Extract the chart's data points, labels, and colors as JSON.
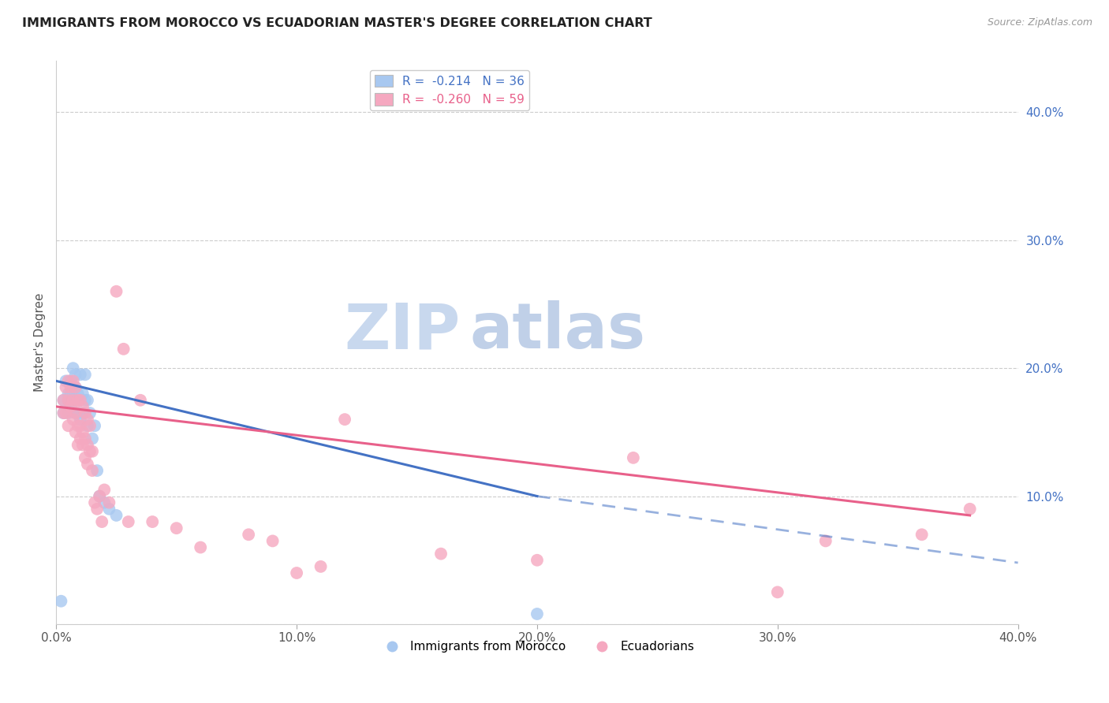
{
  "title": "IMMIGRANTS FROM MOROCCO VS ECUADORIAN MASTER'S DEGREE CORRELATION CHART",
  "source": "Source: ZipAtlas.com",
  "ylabel": "Master's Degree",
  "xlim": [
    0.0,
    0.4
  ],
  "ylim": [
    0.0,
    0.44
  ],
  "legend_r_blue": "R =  -0.214",
  "legend_n_blue": "N = 36",
  "legend_r_pink": "R =  -0.260",
  "legend_n_pink": "N = 59",
  "blue_color": "#a8c8f0",
  "pink_color": "#f5a8c0",
  "line_blue": "#4472c4",
  "line_pink": "#e8608a",
  "watermark_zip": "ZIP",
  "watermark_atlas": "atlas",
  "watermark_color_zip": "#c8d8ee",
  "watermark_color_atlas": "#c0d0e8",
  "blue_scatter_x": [
    0.003,
    0.003,
    0.004,
    0.005,
    0.005,
    0.005,
    0.006,
    0.006,
    0.006,
    0.007,
    0.007,
    0.007,
    0.008,
    0.008,
    0.008,
    0.009,
    0.009,
    0.01,
    0.01,
    0.01,
    0.011,
    0.011,
    0.012,
    0.012,
    0.013,
    0.013,
    0.014,
    0.015,
    0.016,
    0.017,
    0.018,
    0.02,
    0.022,
    0.025,
    0.2,
    0.002
  ],
  "blue_scatter_y": [
    0.175,
    0.165,
    0.19,
    0.18,
    0.175,
    0.165,
    0.19,
    0.18,
    0.17,
    0.2,
    0.185,
    0.175,
    0.195,
    0.185,
    0.165,
    0.18,
    0.165,
    0.195,
    0.175,
    0.16,
    0.18,
    0.165,
    0.195,
    0.175,
    0.175,
    0.155,
    0.165,
    0.145,
    0.155,
    0.12,
    0.1,
    0.095,
    0.09,
    0.085,
    0.008,
    0.018
  ],
  "pink_scatter_x": [
    0.003,
    0.003,
    0.004,
    0.004,
    0.005,
    0.005,
    0.005,
    0.006,
    0.006,
    0.007,
    0.007,
    0.007,
    0.008,
    0.008,
    0.008,
    0.009,
    0.009,
    0.009,
    0.01,
    0.01,
    0.01,
    0.011,
    0.011,
    0.011,
    0.012,
    0.012,
    0.012,
    0.013,
    0.013,
    0.013,
    0.014,
    0.014,
    0.015,
    0.015,
    0.016,
    0.017,
    0.018,
    0.019,
    0.02,
    0.022,
    0.025,
    0.028,
    0.03,
    0.035,
    0.04,
    0.05,
    0.06,
    0.08,
    0.09,
    0.1,
    0.11,
    0.12,
    0.16,
    0.2,
    0.24,
    0.3,
    0.32,
    0.36,
    0.38
  ],
  "pink_scatter_y": [
    0.175,
    0.165,
    0.185,
    0.165,
    0.19,
    0.175,
    0.155,
    0.185,
    0.17,
    0.19,
    0.175,
    0.16,
    0.185,
    0.165,
    0.15,
    0.175,
    0.155,
    0.14,
    0.175,
    0.155,
    0.145,
    0.17,
    0.15,
    0.14,
    0.165,
    0.145,
    0.13,
    0.16,
    0.14,
    0.125,
    0.155,
    0.135,
    0.135,
    0.12,
    0.095,
    0.09,
    0.1,
    0.08,
    0.105,
    0.095,
    0.26,
    0.215,
    0.08,
    0.175,
    0.08,
    0.075,
    0.06,
    0.07,
    0.065,
    0.04,
    0.045,
    0.16,
    0.055,
    0.05,
    0.13,
    0.025,
    0.065,
    0.07,
    0.09
  ],
  "blue_line_y_start": 0.19,
  "blue_line_y_at_solid_end": 0.1,
  "blue_line_solid_end_x": 0.2,
  "blue_line_y_end": 0.048,
  "blue_line_end_x": 0.4,
  "pink_line_y_start": 0.17,
  "pink_line_y_end": 0.085,
  "pink_line_solid_end_x": 0.38,
  "pink_line_y_at_solid_end": 0.085
}
